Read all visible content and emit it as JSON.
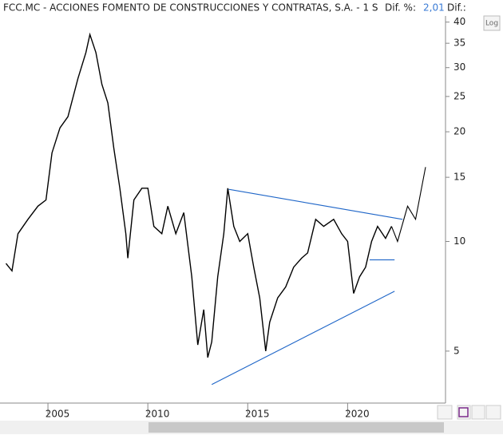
{
  "chart_data": {
    "type": "line",
    "title": "FCC.MC - ACCIONES FOMENTO DE CONSTRUCCIONES Y CONTRATAS, S.A. -  1 S",
    "dif_pct_label": "Dif. %:",
    "dif_pct": "2,01",
    "dif_label": "Dif.:",
    "log_button": "Log",
    "log_scale": true,
    "xlim": [
      2002.6,
      2024.9
    ],
    "ylim": [
      3.6,
      46
    ],
    "xticks": [
      2005,
      2010,
      2015,
      2020
    ],
    "yticks": [
      5,
      10,
      15,
      20,
      25,
      30,
      35,
      40
    ],
    "x": [
      2002.9,
      2003.2,
      2003.5,
      2004.0,
      2004.5,
      2004.9,
      2005.2,
      2005.6,
      2006.0,
      2006.5,
      2006.9,
      2007.1,
      2007.4,
      2007.7,
      2008.0,
      2008.3,
      2008.6,
      2008.9,
      2009.0,
      2009.3,
      2009.7,
      2010.0,
      2010.3,
      2010.7,
      2011.0,
      2011.4,
      2011.8,
      2012.2,
      2012.5,
      2012.8,
      2013.0,
      2013.2,
      2013.5,
      2013.8,
      2014.0,
      2014.3,
      2014.6,
      2015.0,
      2015.3,
      2015.6,
      2015.9,
      2016.1,
      2016.5,
      2016.9,
      2017.3,
      2017.7,
      2018.0,
      2018.4,
      2018.8,
      2019.3,
      2019.7,
      2020.0,
      2020.3,
      2020.6,
      2020.9,
      2021.2,
      2021.5,
      2021.9,
      2022.2
    ],
    "series": [
      {
        "color": "#000000",
        "values": [
          8.7,
          8.3,
          10.5,
          11.5,
          12.5,
          13.0,
          17.5,
          20.5,
          22,
          28,
          33,
          37,
          33,
          27,
          24,
          18,
          14,
          10.5,
          9,
          13,
          14,
          14,
          11,
          10.5,
          12.5,
          10.5,
          12,
          8,
          5.2,
          6.5,
          4.8,
          5.3,
          8,
          10.5,
          14,
          11,
          10,
          10.5,
          8.5,
          7,
          5,
          6,
          7,
          7.5,
          8.5,
          9,
          9.3,
          11.5,
          11,
          11.5,
          10.5,
          10,
          7.2,
          8,
          8.5,
          10,
          11,
          10.2,
          11
        ]
      }
    ],
    "trendlines": [
      {
        "color": "#1f66c8",
        "x": [
          2014.05,
          2022.75
        ],
        "values": [
          13.9,
          11.5
        ]
      },
      {
        "color": "#1f66c8",
        "x": [
          2013.2,
          2022.35
        ],
        "values": [
          4.05,
          7.3
        ]
      },
      {
        "color": "#1f66c8",
        "x": [
          2021.1,
          2022.35
        ],
        "values": [
          8.9,
          8.9
        ]
      },
      {
        "color": "#000000",
        "x": [
          2022.2,
          2022.5,
          2023.0,
          2023.4,
          2023.9
        ],
        "values": [
          11,
          10,
          12.5,
          11.5,
          16
        ]
      }
    ]
  }
}
